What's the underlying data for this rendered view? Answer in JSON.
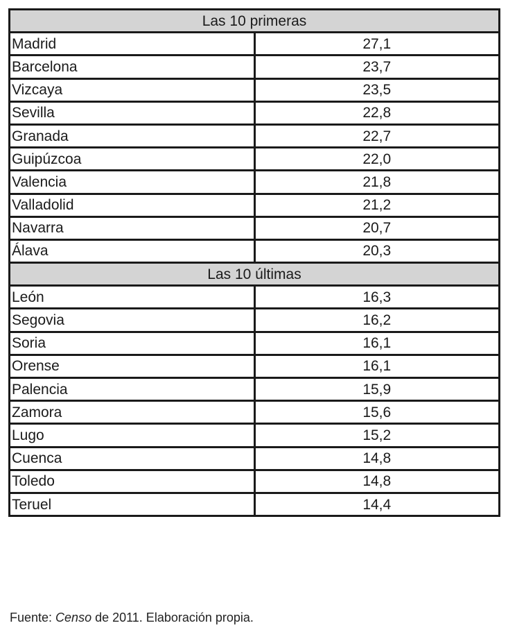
{
  "table": {
    "sections": [
      {
        "title": "Las 10 primeras",
        "rows": [
          {
            "name": "Madrid",
            "value": "27,1"
          },
          {
            "name": "Barcelona",
            "value": "23,7"
          },
          {
            "name": "Vizcaya",
            "value": "23,5"
          },
          {
            "name": "Sevilla",
            "value": "22,8"
          },
          {
            "name": "Granada",
            "value": "22,7"
          },
          {
            "name": "Guipúzcoa",
            "value": "22,0"
          },
          {
            "name": "Valencia",
            "value": "21,8"
          },
          {
            "name": "Valladolid",
            "value": "21,2"
          },
          {
            "name": "Navarra",
            "value": "20,7"
          },
          {
            "name": "Álava",
            "value": "20,3"
          }
        ]
      },
      {
        "title": "Las 10 últimas",
        "rows": [
          {
            "name": "León",
            "value": "16,3"
          },
          {
            "name": "Segovia",
            "value": "16,2"
          },
          {
            "name": "Soria",
            "value": "16,1"
          },
          {
            "name": "Orense",
            "value": "16,1"
          },
          {
            "name": "Palencia",
            "value": "15,9"
          },
          {
            "name": "Zamora",
            "value": "15,6"
          },
          {
            "name": "Lugo",
            "value": "15,2"
          },
          {
            "name": "Cuenca",
            "value": "14,8"
          },
          {
            "name": "Toledo",
            "value": "14,8"
          },
          {
            "name": "Teruel",
            "value": "14,4"
          }
        ]
      }
    ]
  },
  "source": {
    "prefix": "Fuente: ",
    "italic": "Censo",
    "suffix": " de 2011. Elaboración propia."
  }
}
